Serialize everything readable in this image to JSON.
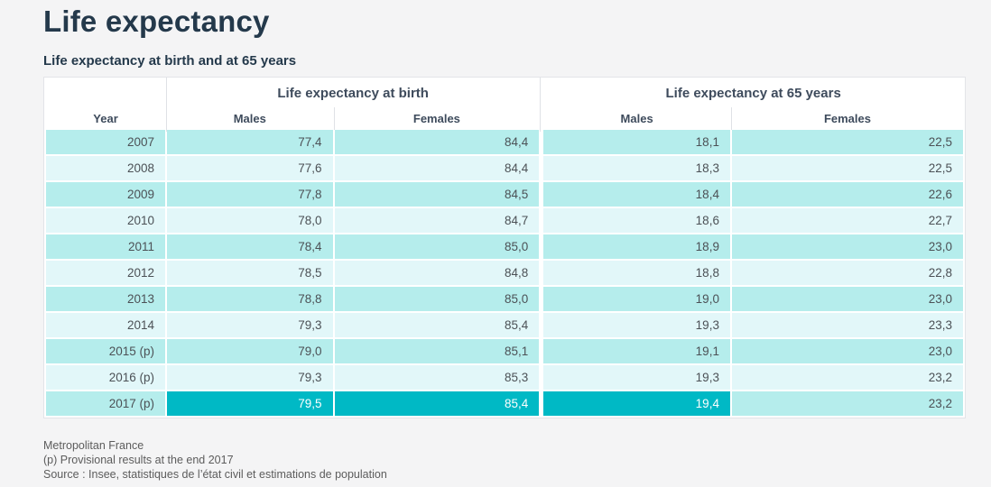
{
  "page": {
    "title": "Life expectancy",
    "subtitle": "Life expectancy at birth and at 65 years"
  },
  "table": {
    "column_groups": [
      {
        "label": "Life expectancy at birth"
      },
      {
        "label": "Life expectancy at 65 years"
      }
    ],
    "columns": [
      "Year",
      "Males",
      "Females",
      "Males",
      "Females"
    ],
    "rows": [
      [
        "2007",
        "77,4",
        "84,4",
        "18,1",
        "22,5"
      ],
      [
        "2008",
        "77,6",
        "84,4",
        "18,3",
        "22,5"
      ],
      [
        "2009",
        "77,8",
        "84,5",
        "18,4",
        "22,6"
      ],
      [
        "2010",
        "78,0",
        "84,7",
        "18,6",
        "22,7"
      ],
      [
        "2011",
        "78,4",
        "85,0",
        "18,9",
        "23,0"
      ],
      [
        "2012",
        "78,5",
        "84,8",
        "18,8",
        "22,8"
      ],
      [
        "2013",
        "78,8",
        "85,0",
        "19,0",
        "23,0"
      ],
      [
        "2014",
        "79,3",
        "85,4",
        "19,3",
        "23,3"
      ],
      [
        "2015 (p)",
        "79,0",
        "85,1",
        "19,1",
        "23,0"
      ],
      [
        "2016 (p)",
        "79,3",
        "85,3",
        "19,3",
        "23,2"
      ],
      [
        "2017 (p)",
        "79,5",
        "85,4",
        "19,4",
        "23,2"
      ]
    ],
    "highlight": {
      "row_index": 10,
      "cell_indexes": [
        1,
        2,
        3
      ]
    }
  },
  "footer": {
    "lines": [
      "Metropolitan France",
      "(p) Provisional results at the end 2017",
      "Source : Insee, statistiques de l’état civil et estimations de population"
    ]
  },
  "colors": {
    "page_background": "#f4f4f5",
    "heading_text": "#24394b",
    "row_even": "#b5edec",
    "row_odd": "#e2f7f9",
    "highlight": "#00b9c5"
  }
}
